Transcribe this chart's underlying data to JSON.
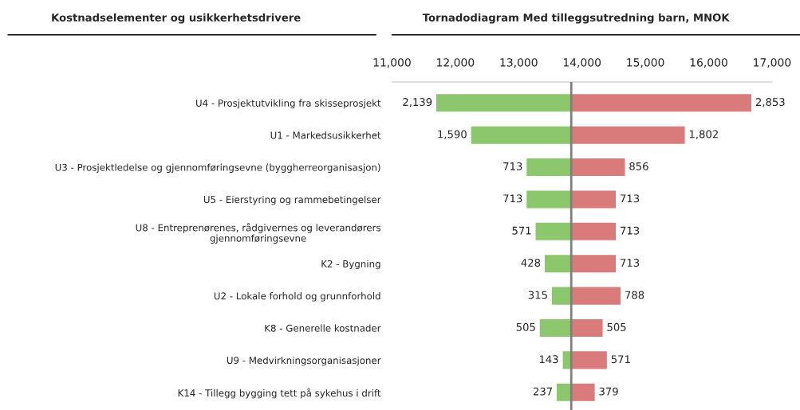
{
  "chart_data": {
    "type": "bar",
    "orientation": "horizontal",
    "title": "Tornadodiagram Med tilleggsutredning barn, MNOK",
    "ylabel": "Kostnadselementer og usikkerhetsdrivere",
    "categories": [
      "U4 - Prosjektutvikling fra skisseprosjekt",
      "U1 - Markedsusikkerhet",
      "U3 - Prosjektledelse og gjennomføringsevne (byggherreorganisasjon)",
      "U5 - Eierstyring og rammebetingelser",
      "U8 - Entreprenørenes, rådgivernes og leverandørers\ngjennomføringsevne",
      "K2 - Bygning",
      "U2 - Lokale forhold og grunnforhold",
      "K8 - Generelle kostnader",
      "U9 - Medvirkningsorganisasjoner",
      "K14 - Tillegg bygging tett på sykehus i drift"
    ],
    "series": [
      {
        "color": "#8cc66d",
        "base": [
          11691,
          12240,
          13117,
          13117,
          13259,
          13402,
          13515,
          13325,
          13687,
          13593
        ],
        "values": [
          2139,
          1590,
          713,
          713,
          571,
          428,
          315,
          505,
          143,
          237
        ],
        "value_labels": [
          "2,139",
          "1,590",
          "713",
          "713",
          "571",
          "428",
          "315",
          "505",
          "143",
          "237"
        ]
      },
      {
        "color": "#d97b7b",
        "base": [
          13830,
          13830,
          13830,
          13830,
          13830,
          13830,
          13830,
          13830,
          13830,
          13830
        ],
        "values": [
          2853,
          1802,
          856,
          713,
          713,
          713,
          788,
          505,
          571,
          379
        ],
        "value_labels": [
          "2,853",
          "1,802",
          "856",
          "713",
          "713",
          "713",
          "788",
          "505",
          "571",
          "379"
        ]
      }
    ],
    "xlim": [
      11000,
      17000
    ],
    "xticks": [
      {
        "value": 11000,
        "label": "11,000"
      },
      {
        "value": 12000,
        "label": "12,000"
      },
      {
        "value": 13000,
        "label": "13,000"
      },
      {
        "value": 14000,
        "label": "14,000"
      },
      {
        "value": 15000,
        "label": "15,000"
      },
      {
        "value": 16000,
        "label": "16,000"
      },
      {
        "value": 17000,
        "label": "17,000"
      }
    ],
    "ref_lines": [
      {
        "axis": "x",
        "value": 13830,
        "color": "#7f7f7f"
      }
    ],
    "grid": false,
    "legend": false
  }
}
